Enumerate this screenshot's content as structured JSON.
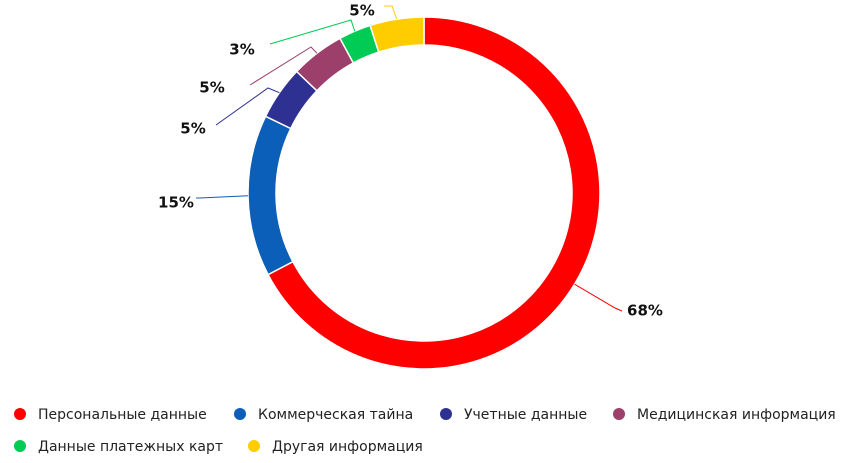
{
  "chart_data": {
    "type": "pie",
    "categories": [
      "Персональные данные",
      "Коммерческая тайна",
      "Учетные данные",
      "Медицинская информация",
      "Данные платежных карт",
      "Другая информация"
    ],
    "values": [
      68,
      15,
      5,
      5,
      3,
      5
    ],
    "value_labels": [
      "68%",
      "15%",
      "5%",
      "5%",
      "3%",
      "5%"
    ],
    "colors": [
      "#ff0000",
      "#0b5fb8",
      "#2e3192",
      "#9c3f6b",
      "#00cc55",
      "#ffcc00"
    ],
    "legend": "bottom"
  }
}
